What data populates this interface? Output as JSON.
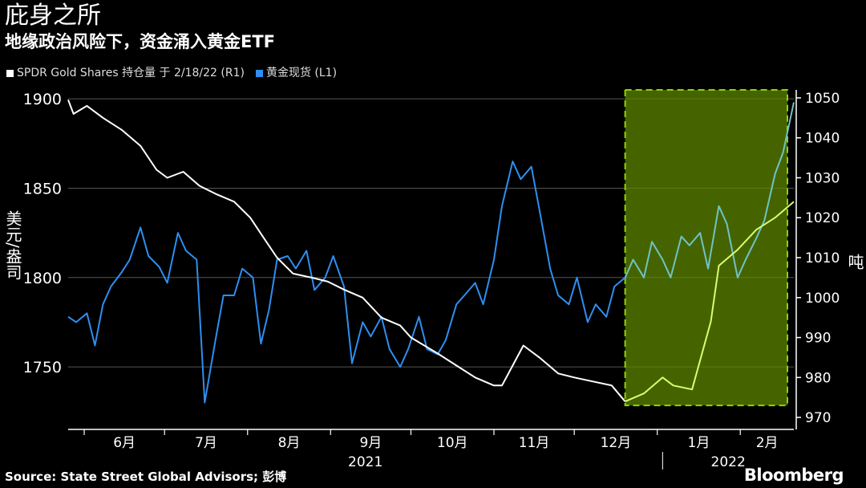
{
  "header": {
    "title": "庇身之所",
    "subtitle": "地缘政治风险下，资金涌入黄金ETF"
  },
  "legend": [
    {
      "label": "SPDR Gold Shares 持仓量 于 2/18/22 (R1)",
      "color": "#ffffff"
    },
    {
      "label": "黄金现货 (L1)",
      "color": "#2e8ff0"
    }
  ],
  "footer": {
    "source": "Source: State Street Global Advisors; 彭博",
    "logo": "Bloomberg"
  },
  "chart_data": {
    "type": "line",
    "left_axis": {
      "label": "美元/盎司",
      "range": [
        1715,
        1905
      ],
      "ticks": [
        1750,
        1800,
        1850,
        1900
      ]
    },
    "right_axis": {
      "label": "吨",
      "range": [
        967,
        1052
      ],
      "ticks": [
        970,
        980,
        990,
        1000,
        1010,
        1020,
        1030,
        1040,
        1050
      ]
    },
    "x_axis": {
      "range": [
        "2021-05-26",
        "2022-02-21"
      ],
      "month_ticks": [
        "6月",
        "7月",
        "8月",
        "9月",
        "10月",
        "11月",
        "12月",
        "1月",
        "2月"
      ],
      "years": [
        "2021",
        "2022"
      ]
    },
    "highlight": {
      "from": "2021-12-20",
      "to": "2022-02-21",
      "color": "#5f8a00"
    },
    "series": [
      {
        "name": "SPDR Gold Shares 持仓量 于 2/18/22 (R1)",
        "axis": "right",
        "color": "#ffffff",
        "highlight_color": "#d8ff70",
        "x": [
          "2021-05-26",
          "2021-05-28",
          "2021-06-02",
          "2021-06-08",
          "2021-06-15",
          "2021-06-22",
          "2021-06-28",
          "2021-07-02",
          "2021-07-08",
          "2021-07-14",
          "2021-07-20",
          "2021-07-27",
          "2021-08-02",
          "2021-08-06",
          "2021-08-12",
          "2021-08-18",
          "2021-08-25",
          "2021-08-31",
          "2021-09-06",
          "2021-09-13",
          "2021-09-20",
          "2021-09-27",
          "2021-10-01",
          "2021-10-06",
          "2021-10-11",
          "2021-10-18",
          "2021-10-25",
          "2021-11-01",
          "2021-11-04",
          "2021-11-08",
          "2021-11-12",
          "2021-11-18",
          "2021-11-25",
          "2021-12-01",
          "2021-12-08",
          "2021-12-15",
          "2021-12-20",
          "2021-12-27",
          "2022-01-03",
          "2022-01-07",
          "2022-01-14",
          "2022-01-21",
          "2022-01-24",
          "2022-01-31",
          "2022-02-07",
          "2022-02-14",
          "2022-02-21"
        ],
        "values": [
          1049.5,
          1046,
          1048,
          1045,
          1042,
          1038,
          1032,
          1030,
          1031.5,
          1028,
          1026,
          1024,
          1020,
          1016,
          1010,
          1006,
          1005,
          1004,
          1002,
          1000,
          995,
          993,
          990,
          988,
          986,
          983,
          980,
          978,
          978,
          983,
          988,
          985,
          981,
          980,
          979,
          978,
          974,
          976,
          980,
          978,
          977,
          994,
          1008,
          1012,
          1017,
          1020,
          1024
        ]
      },
      {
        "name": "黄金现货 (L1)",
        "axis": "left",
        "color": "#2e8ff0",
        "highlight_color": "#6fc3c6",
        "x": [
          "2021-05-26",
          "2021-05-29",
          "2021-06-02",
          "2021-06-05",
          "2021-06-08",
          "2021-06-11",
          "2021-06-15",
          "2021-06-18",
          "2021-06-22",
          "2021-06-25",
          "2021-06-29",
          "2021-07-02",
          "2021-07-06",
          "2021-07-09",
          "2021-07-13",
          "2021-07-16",
          "2021-07-20",
          "2021-07-23",
          "2021-07-27",
          "2021-07-30",
          "2021-08-03",
          "2021-08-06",
          "2021-08-09",
          "2021-08-12",
          "2021-08-16",
          "2021-08-19",
          "2021-08-23",
          "2021-08-26",
          "2021-08-30",
          "2021-09-02",
          "2021-09-06",
          "2021-09-09",
          "2021-09-13",
          "2021-09-16",
          "2021-09-20",
          "2021-09-23",
          "2021-09-27",
          "2021-09-30",
          "2021-10-04",
          "2021-10-07",
          "2021-10-11",
          "2021-10-14",
          "2021-10-18",
          "2021-10-21",
          "2021-10-25",
          "2021-10-28",
          "2021-11-01",
          "2021-11-04",
          "2021-11-08",
          "2021-11-11",
          "2021-11-15",
          "2021-11-18",
          "2021-11-22",
          "2021-11-25",
          "2021-11-29",
          "2021-12-02",
          "2021-12-06",
          "2021-12-09",
          "2021-12-13",
          "2021-12-16",
          "2021-12-20",
          "2021-12-23",
          "2021-12-27",
          "2021-12-30",
          "2022-01-03",
          "2022-01-06",
          "2022-01-10",
          "2022-01-13",
          "2022-01-17",
          "2022-01-20",
          "2022-01-24",
          "2022-01-27",
          "2022-01-31",
          "2022-02-03",
          "2022-02-07",
          "2022-02-10",
          "2022-02-14",
          "2022-02-17",
          "2022-02-21"
        ],
        "values": [
          1778,
          1775,
          1780,
          1762,
          1785,
          1795,
          1803,
          1810,
          1828,
          1812,
          1806,
          1797,
          1825,
          1815,
          1810,
          1730,
          1765,
          1790,
          1790,
          1805,
          1800,
          1763,
          1782,
          1810,
          1812,
          1805,
          1815,
          1793,
          1800,
          1812,
          1795,
          1752,
          1775,
          1767,
          1778,
          1760,
          1750,
          1760,
          1778,
          1760,
          1757,
          1765,
          1785,
          1790,
          1797,
          1785,
          1810,
          1840,
          1865,
          1855,
          1862,
          1838,
          1805,
          1790,
          1785,
          1800,
          1775,
          1785,
          1778,
          1795,
          1800,
          1810,
          1800,
          1820,
          1810,
          1800,
          1823,
          1818,
          1825,
          1805,
          1840,
          1830,
          1800,
          1810,
          1822,
          1832,
          1858,
          1870,
          1898
        ]
      }
    ]
  }
}
